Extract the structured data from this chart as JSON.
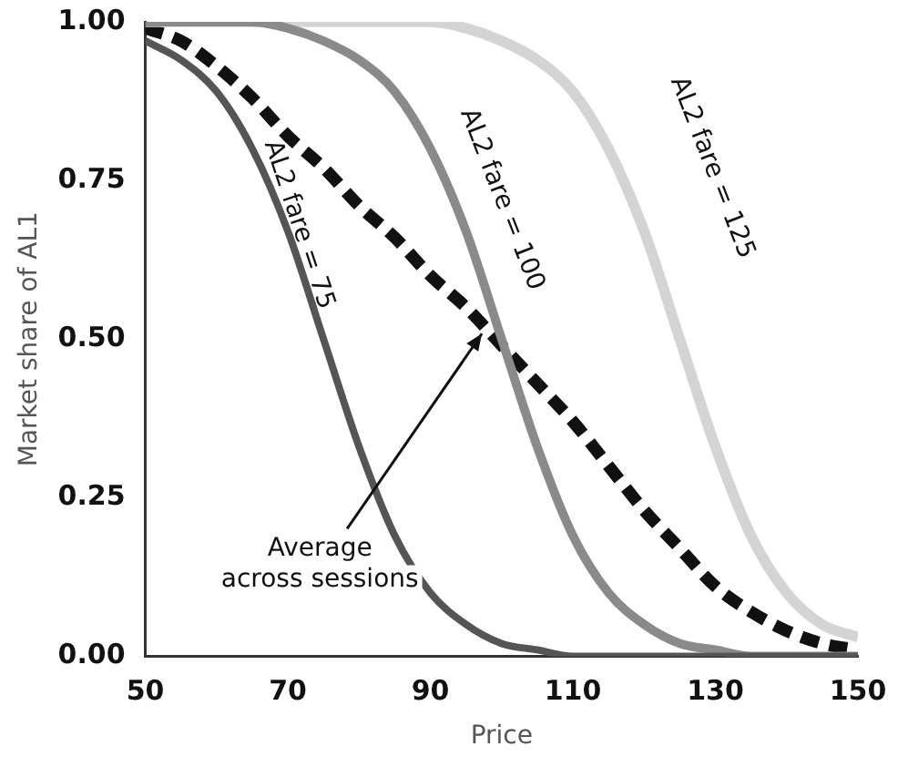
{
  "chart_data": {
    "type": "line",
    "xlabel": "Price",
    "ylabel": "Market share of AL1",
    "x": [
      50,
      55,
      60,
      65,
      70,
      75,
      80,
      85,
      90,
      95,
      100,
      105,
      110,
      115,
      120,
      125,
      130,
      135,
      140,
      145,
      150
    ],
    "series": [
      {
        "name": "AL2 fare = 75",
        "color": "#555555",
        "values": [
          0.97,
          0.94,
          0.89,
          0.8,
          0.67,
          0.5,
          0.33,
          0.19,
          0.1,
          0.05,
          0.02,
          0.01,
          0,
          0,
          0,
          0,
          0,
          0,
          0,
          0,
          0
        ]
      },
      {
        "name": "AL2 fare = 100",
        "color": "#8a8a8a",
        "values": [
          1,
          1,
          1,
          1,
          0.99,
          0.97,
          0.94,
          0.89,
          0.8,
          0.67,
          0.5,
          0.33,
          0.19,
          0.1,
          0.05,
          0.02,
          0.01,
          0,
          0,
          0,
          0
        ]
      },
      {
        "name": "AL2 fare = 125",
        "color": "#d4d4d4",
        "values": [
          1,
          1,
          1,
          1,
          1,
          1,
          1,
          1,
          1,
          0.99,
          0.97,
          0.94,
          0.89,
          0.8,
          0.67,
          0.5,
          0.33,
          0.19,
          0.1,
          0.05,
          0.03
        ]
      },
      {
        "color": "#111111",
        "line_style": "dashed",
        "values": [
          0.99,
          0.97,
          0.93,
          0.88,
          0.82,
          0.77,
          0.71,
          0.66,
          0.6,
          0.55,
          0.49,
          0.43,
          0.37,
          0.3,
          0.23,
          0.17,
          0.11,
          0.07,
          0.04,
          0.02,
          0.01
        ]
      }
    ],
    "xlim": [
      50,
      150
    ],
    "xticks": [
      50,
      70,
      90,
      110,
      130,
      150
    ],
    "ylim": [
      0,
      1
    ],
    "yticks": [
      {
        "value": 0,
        "label": "0.00"
      },
      {
        "value": 0.25,
        "label": "0.25"
      },
      {
        "value": 0.5,
        "label": "0.50"
      },
      {
        "value": 0.75,
        "label": "0.75"
      },
      {
        "value": 1,
        "label": "1.00"
      }
    ],
    "annotations": [
      {
        "text": "Average\nacross sessions",
        "x": 98,
        "y": 0.52
      }
    ],
    "grid": false,
    "legend": false,
    "marker": "none"
  }
}
